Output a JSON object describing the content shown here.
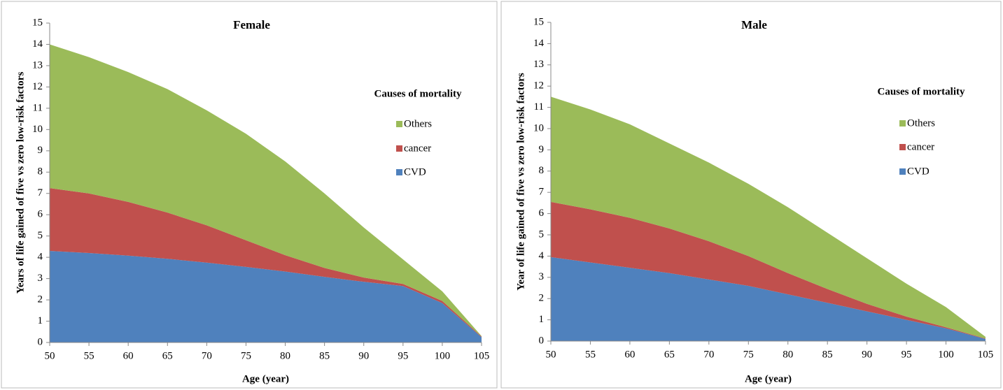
{
  "chart_data": [
    {
      "type": "stacked-area",
      "title": "Female",
      "x_label": "Age (year)",
      "y_label": "Years of life gained of five vs zero low-risk factors",
      "legend_title": "Causes of mortality",
      "x": [
        50,
        55,
        60,
        65,
        70,
        75,
        80,
        85,
        90,
        95,
        100,
        105
      ],
      "series": [
        {
          "name": "CVD",
          "color": "#4f81bd",
          "values": [
            4.3,
            4.2,
            4.08,
            3.93,
            3.75,
            3.55,
            3.33,
            3.08,
            2.85,
            2.65,
            1.85,
            0.25
          ]
        },
        {
          "name": "cancer",
          "color": "#c0504d",
          "values": [
            2.95,
            2.8,
            2.52,
            2.17,
            1.75,
            1.25,
            0.77,
            0.42,
            0.2,
            0.1,
            0.1,
            0.03
          ]
        },
        {
          "name": "Others",
          "color": "#9bbb59",
          "values": [
            6.75,
            6.4,
            6.1,
            5.8,
            5.4,
            5.0,
            4.4,
            3.5,
            2.35,
            1.15,
            0.45,
            0.02
          ]
        }
      ],
      "xlim": [
        50,
        105
      ],
      "xticks": [
        50,
        55,
        60,
        65,
        70,
        75,
        80,
        85,
        90,
        95,
        100,
        105
      ],
      "ylim": [
        0,
        15
      ],
      "yticks": [
        0,
        1,
        2,
        3,
        4,
        5,
        6,
        7,
        8,
        9,
        10,
        11,
        12,
        13,
        14,
        15
      ],
      "grid": false,
      "legend": "right"
    },
    {
      "type": "stacked-area",
      "title": "Male",
      "x_label": "Age (year)",
      "y_label": "Year of life gained of five vs zero low-risk factors",
      "legend_title": "Causes of mortality",
      "x": [
        50,
        55,
        60,
        65,
        70,
        75,
        80,
        85,
        90,
        95,
        100,
        105
      ],
      "series": [
        {
          "name": "CVD",
          "color": "#4f81bd",
          "values": [
            3.95,
            3.7,
            3.45,
            3.2,
            2.9,
            2.6,
            2.2,
            1.8,
            1.4,
            1.0,
            0.6,
            0.1
          ]
        },
        {
          "name": "cancer",
          "color": "#c0504d",
          "values": [
            2.6,
            2.5,
            2.35,
            2.1,
            1.8,
            1.4,
            1.0,
            0.65,
            0.35,
            0.15,
            0.05,
            0.02
          ]
        },
        {
          "name": "Others",
          "color": "#9bbb59",
          "values": [
            4.95,
            4.7,
            4.4,
            4.0,
            3.7,
            3.4,
            3.1,
            2.65,
            2.15,
            1.55,
            0.95,
            0.08
          ]
        }
      ],
      "xlim": [
        50,
        105
      ],
      "xticks": [
        50,
        55,
        60,
        65,
        70,
        75,
        80,
        85,
        90,
        95,
        100,
        105
      ],
      "ylim": [
        0,
        15
      ],
      "yticks": [
        0,
        1,
        2,
        3,
        4,
        5,
        6,
        7,
        8,
        9,
        10,
        11,
        12,
        13,
        14,
        15
      ],
      "grid": false,
      "legend": "right"
    }
  ]
}
